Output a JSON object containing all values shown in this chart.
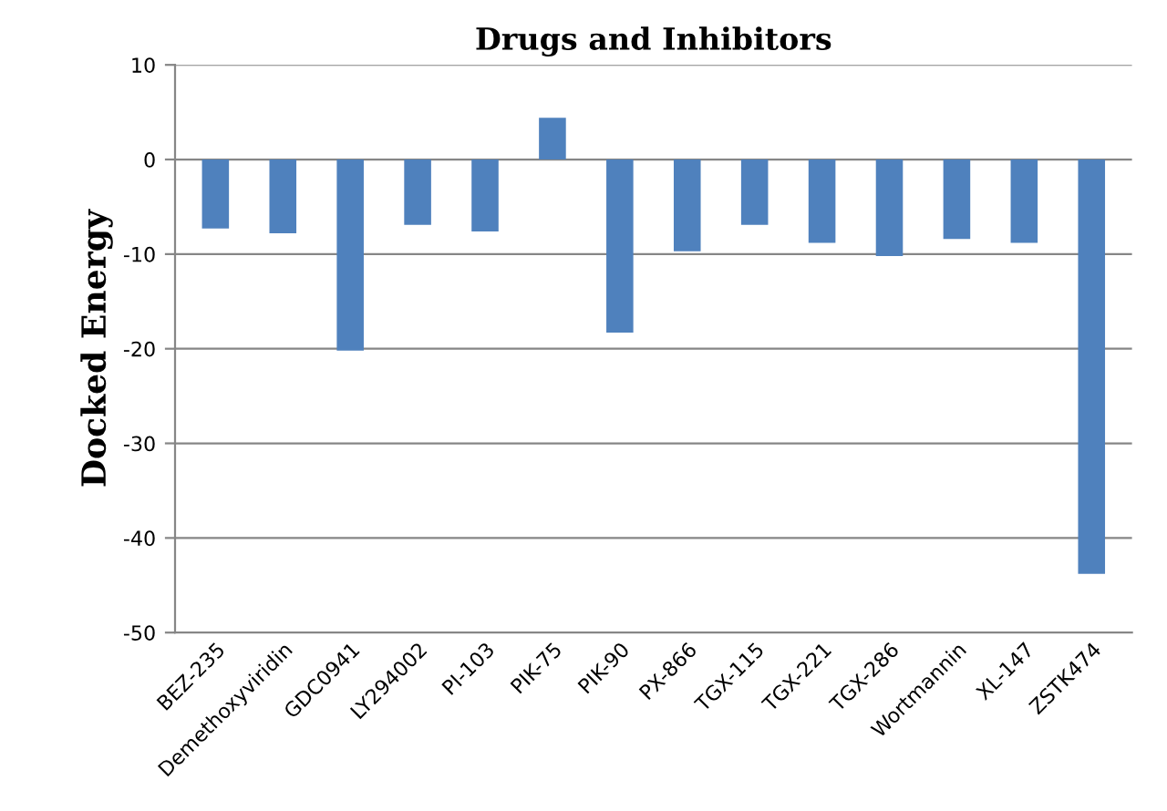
{
  "chart_data": {
    "type": "bar",
    "title": "Drugs and Inhibitors",
    "ylabel": "Docked Energy",
    "categories": [
      "BEZ-235",
      "Demethoxyviridin",
      "GDC0941",
      "LY294002",
      "PI-103",
      "PIK-75",
      "PIK-90",
      "PX-866",
      "TGX-115",
      "TGX-221",
      "TGX-286",
      "Wortmannin",
      "XL-147",
      "ZSTK474"
    ],
    "values": [
      -7.3,
      -7.8,
      -20.2,
      -6.9,
      -7.6,
      4.4,
      -18.3,
      -9.7,
      -6.9,
      -8.8,
      -10.2,
      -8.4,
      -8.8,
      -43.8
    ],
    "color": "#4f81bd",
    "ylim": [
      -50,
      10
    ],
    "yticks": [
      -50,
      -40,
      -30,
      -20,
      -10,
      0,
      10
    ],
    "grid": "y",
    "legend": false
  }
}
